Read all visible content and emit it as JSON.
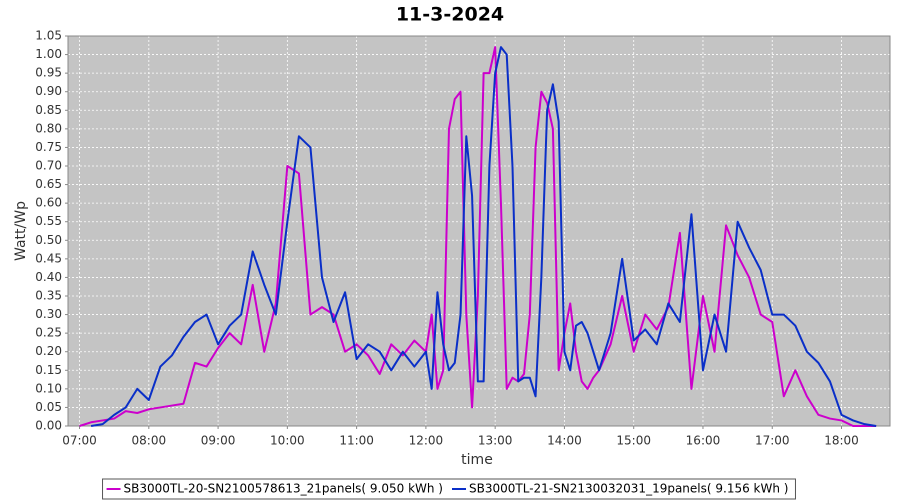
{
  "chart_data": {
    "type": "line",
    "title": "11-3-2024",
    "x_label": "time",
    "y_label": "Watt/Wp",
    "x": [
      "07:00",
      "07:10",
      "07:20",
      "07:30",
      "07:40",
      "07:50",
      "08:00",
      "08:10",
      "08:20",
      "08:30",
      "08:40",
      "08:50",
      "09:00",
      "09:10",
      "09:20",
      "09:30",
      "09:40",
      "09:50",
      "10:00",
      "10:10",
      "10:20",
      "10:30",
      "10:40",
      "10:50",
      "11:00",
      "11:10",
      "11:20",
      "11:30",
      "11:40",
      "11:50",
      "12:00",
      "12:05",
      "12:10",
      "12:15",
      "12:20",
      "12:25",
      "12:30",
      "12:35",
      "12:40",
      "12:45",
      "12:50",
      "12:55",
      "13:00",
      "13:05",
      "13:10",
      "13:15",
      "13:20",
      "13:25",
      "13:30",
      "13:35",
      "13:40",
      "13:45",
      "13:50",
      "13:55",
      "14:00",
      "14:05",
      "14:10",
      "14:15",
      "14:20",
      "14:25",
      "14:30",
      "14:40",
      "14:50",
      "15:00",
      "15:10",
      "15:20",
      "15:30",
      "15:40",
      "15:50",
      "16:00",
      "16:10",
      "16:20",
      "16:30",
      "16:40",
      "16:50",
      "17:00",
      "17:10",
      "17:20",
      "17:30",
      "17:40",
      "17:50",
      "18:00",
      "18:10",
      "18:20",
      "18:30"
    ],
    "series": [
      {
        "name": "SB3000TL-20-SN2100578613_21panels( 9.050 kWh )",
        "color": "#cc00cc",
        "values": [
          0,
          0.01,
          0.015,
          0.02,
          0.04,
          0.035,
          0.045,
          0.05,
          0.055,
          0.06,
          0.17,
          0.16,
          0.21,
          0.25,
          0.22,
          0.38,
          0.2,
          0.33,
          0.7,
          0.68,
          0.3,
          0.32,
          0.3,
          0.2,
          0.22,
          0.19,
          0.14,
          0.22,
          0.19,
          0.23,
          0.2,
          0.3,
          0.1,
          0.15,
          0.8,
          0.88,
          0.9,
          0.3,
          0.05,
          0.35,
          0.95,
          0.95,
          1.02,
          0.6,
          0.1,
          0.13,
          0.12,
          0.14,
          0.3,
          0.75,
          0.9,
          0.87,
          0.8,
          0.15,
          0.25,
          0.33,
          0.2,
          0.12,
          0.1,
          0.13,
          0.15,
          0.22,
          0.35,
          0.2,
          0.3,
          0.26,
          0.32,
          0.52,
          0.1,
          0.35,
          0.2,
          0.54,
          0.46,
          0.4,
          0.3,
          0.28,
          0.08,
          0.15,
          0.08,
          0.03,
          0.02,
          0.015,
          0,
          0,
          0
        ]
      },
      {
        "name": "SB3000TL-21-SN2130032031_19panels( 9.156 kWh )",
        "color": "#0a2fc8",
        "values": [
          null,
          0,
          0.005,
          0.03,
          0.05,
          0.1,
          0.07,
          0.16,
          0.19,
          0.24,
          0.28,
          0.3,
          0.22,
          0.27,
          0.3,
          0.47,
          0.38,
          0.3,
          0.55,
          0.78,
          0.75,
          0.4,
          0.28,
          0.36,
          0.18,
          0.22,
          0.2,
          0.15,
          0.2,
          0.16,
          0.2,
          0.1,
          0.36,
          0.22,
          0.15,
          0.17,
          0.3,
          0.78,
          0.62,
          0.12,
          0.12,
          0.7,
          0.95,
          1.02,
          1.0,
          0.7,
          0.12,
          0.13,
          0.13,
          0.08,
          0.4,
          0.85,
          0.92,
          0.82,
          0.2,
          0.15,
          0.27,
          0.28,
          0.25,
          0.2,
          0.15,
          0.25,
          0.45,
          0.23,
          0.26,
          0.22,
          0.33,
          0.28,
          0.57,
          0.15,
          0.3,
          0.2,
          0.55,
          0.48,
          0.42,
          0.3,
          0.3,
          0.27,
          0.2,
          0.17,
          0.12,
          0.03,
          0.015,
          0.005,
          0
        ]
      }
    ],
    "xlim": [
      "06:50",
      "18:42"
    ],
    "xticks": [
      "07:00",
      "08:00",
      "09:00",
      "10:00",
      "11:00",
      "12:00",
      "13:00",
      "14:00",
      "15:00",
      "16:00",
      "17:00",
      "18:00"
    ],
    "ylim": [
      0,
      1.05
    ],
    "yticks": [
      {
        "value": 0,
        "label": "0.00"
      },
      {
        "value": 0.05,
        "label": "0.05"
      },
      {
        "value": 0.1,
        "label": "0.10"
      },
      {
        "value": 0.15,
        "label": "0.15"
      },
      {
        "value": 0.2,
        "label": "0.20"
      },
      {
        "value": 0.25,
        "label": "0.25"
      },
      {
        "value": 0.3,
        "label": "0.30"
      },
      {
        "value": 0.35,
        "label": "0.35"
      },
      {
        "value": 0.4,
        "label": "0.40"
      },
      {
        "value": 0.45,
        "label": "0.45"
      },
      {
        "value": 0.5,
        "label": "0.50"
      },
      {
        "value": 0.55,
        "label": "0.55"
      },
      {
        "value": 0.6,
        "label": "0.60"
      },
      {
        "value": 0.65,
        "label": "0.65"
      },
      {
        "value": 0.7,
        "label": "0.70"
      },
      {
        "value": 0.75,
        "label": "0.75"
      },
      {
        "value": 0.8,
        "label": "0.80"
      },
      {
        "value": 0.85,
        "label": "0.85"
      },
      {
        "value": 0.9,
        "label": "0.90"
      },
      {
        "value": 0.95,
        "label": "0.95"
      },
      {
        "value": 1,
        "label": "1.00"
      },
      {
        "value": 1.05,
        "label": "1.05"
      }
    ],
    "grid": true,
    "legend": "bottom"
  }
}
